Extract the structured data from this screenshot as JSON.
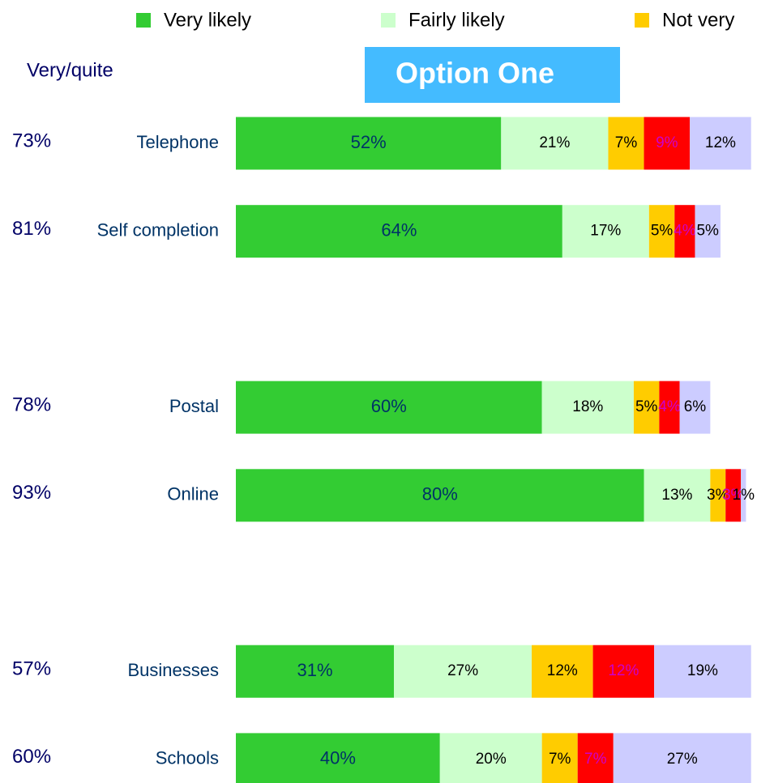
{
  "chart_data": {
    "type": "stacked-bar-horizontal",
    "title": "Option One",
    "categories": [
      "Telephone",
      "Self completion",
      null,
      "Postal",
      "Online",
      null,
      "Businesses",
      "Schools"
    ],
    "xlim": [
      0,
      102
    ],
    "series": [
      {
        "name": "Very likely",
        "color": "#33cc33",
        "values": [
          52,
          64,
          null,
          60,
          80,
          null,
          31,
          40
        ],
        "value_labels": [
          "52%",
          "64%",
          null,
          "60%",
          "80%",
          null,
          "31%",
          "40%"
        ]
      },
      {
        "name": "Fairly likely",
        "color": "#ccffcc",
        "values": [
          21,
          17,
          null,
          18,
          13,
          null,
          27,
          20
        ],
        "value_labels": [
          "21%",
          "17%",
          null,
          "18%",
          "13%",
          null,
          "27%",
          "20%"
        ]
      },
      {
        "name": "Not very",
        "color": "#ffcc00",
        "values": [
          7,
          5,
          null,
          5,
          3,
          null,
          12,
          7
        ],
        "value_labels": [
          "7%",
          "5%",
          null,
          "5%",
          "3%",
          null,
          "12%",
          "7%"
        ]
      },
      {
        "color": "#ff0000",
        "values": [
          9,
          4,
          null,
          4,
          3,
          null,
          12,
          7
        ],
        "value_labels": [
          "9%",
          "4%",
          null,
          "4%",
          "3%",
          null,
          "12%",
          "7%"
        ]
      },
      {
        "color": "#ccccff",
        "values": [
          12,
          5,
          null,
          6,
          1,
          null,
          19,
          27
        ],
        "value_labels": [
          "12%",
          "5%",
          null,
          "6%",
          "1%",
          null,
          "19%",
          "27%"
        ]
      }
    ],
    "totals": {
      "name": "Very/quite",
      "values": [
        73,
        81,
        null,
        78,
        93,
        null,
        57,
        60
      ],
      "value_labels": [
        "73%",
        "81%",
        null,
        "78%",
        "93%",
        null,
        "57%",
        "60%"
      ]
    }
  }
}
